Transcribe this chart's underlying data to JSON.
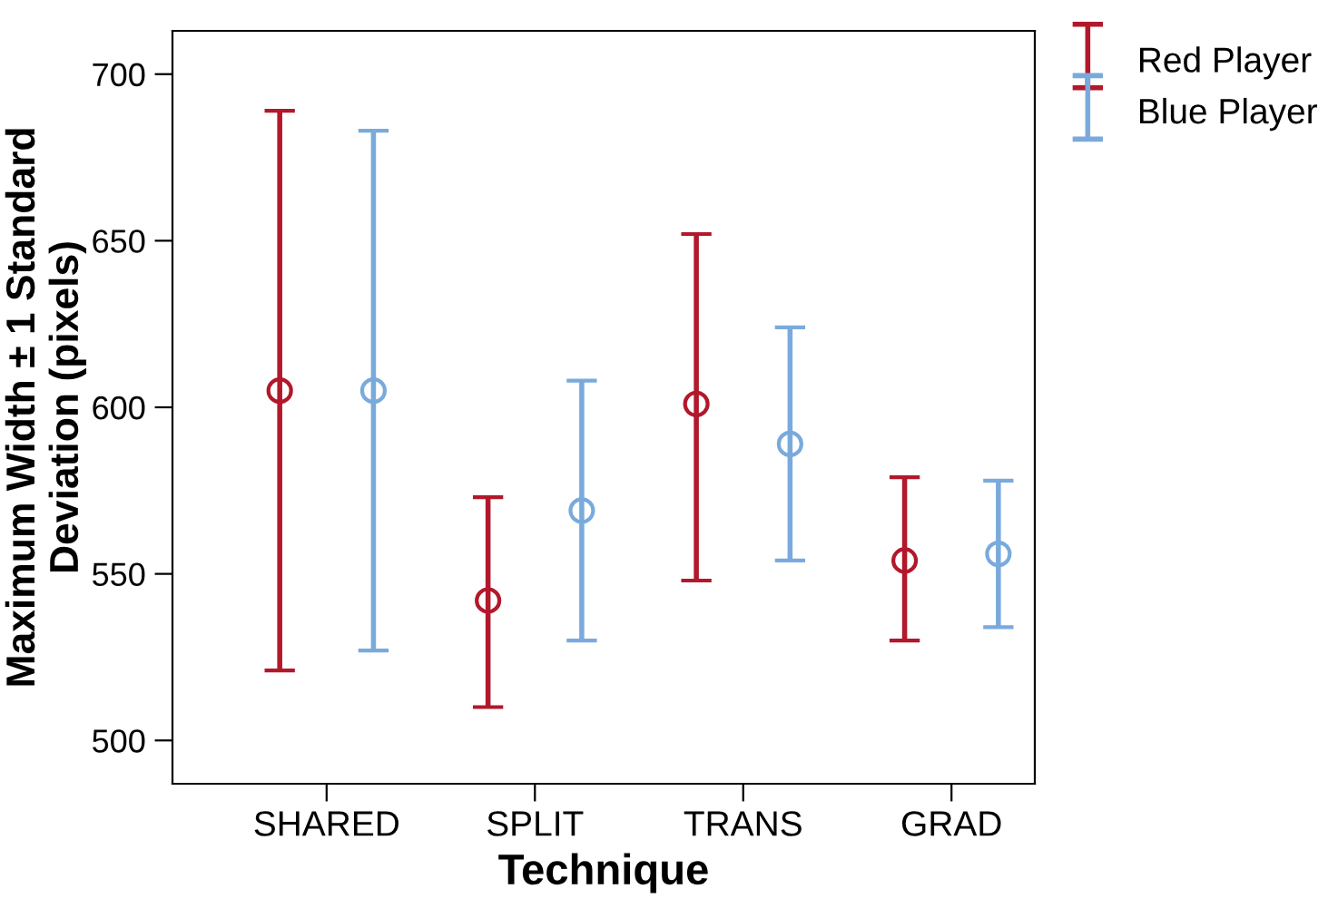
{
  "chart_data": {
    "type": "scatter",
    "xlabel": "Technique",
    "ylabel": "Maximum Width ± 1 Standard\nDeviation (pixels)",
    "categories": [
      "SHARED",
      "SPLIT",
      "TRANS",
      "GRAD"
    ],
    "series": [
      {
        "name": "Red Player",
        "color": "#b2182b",
        "values": [
          605,
          542,
          601,
          554
        ],
        "errors": [
          [
            521,
            689
          ],
          [
            510,
            573
          ],
          [
            548,
            652
          ],
          [
            530,
            579
          ]
        ]
      },
      {
        "name": "Blue Player",
        "color": "#7aaadc",
        "values": [
          605,
          569,
          589,
          556
        ],
        "errors": [
          [
            527,
            683
          ],
          [
            530,
            608
          ],
          [
            554,
            624
          ],
          [
            534,
            578
          ]
        ]
      }
    ],
    "ylim": [
      487,
      713
    ],
    "yticks": [
      500,
      550,
      600,
      650,
      700
    ],
    "grid": false,
    "legend": "top right",
    "marker": "circle"
  }
}
